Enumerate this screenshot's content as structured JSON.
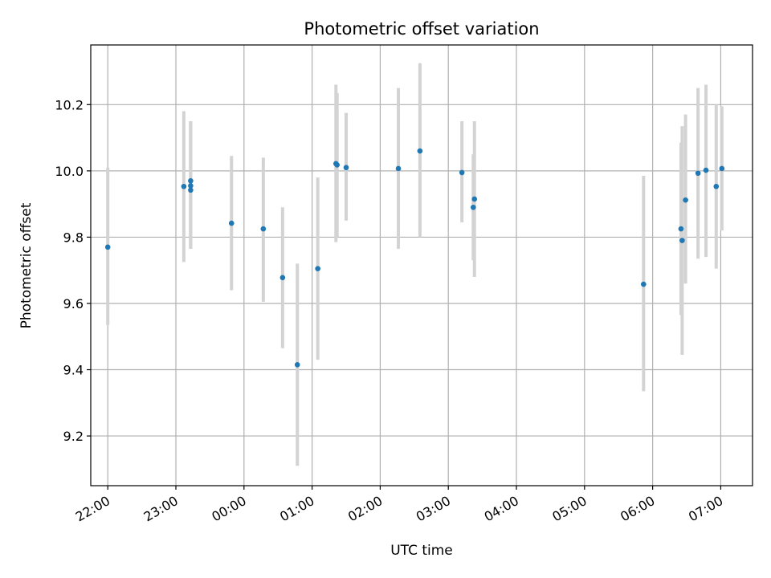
{
  "chart_data": {
    "type": "scatter",
    "title": "Photometric offset variation",
    "xlabel": "UTC time",
    "ylabel": "Photometric offset",
    "x_format": "HH:MM",
    "x_start_date": "",
    "xlim": [
      "21:45",
      "07:28"
    ],
    "ylim": [
      9.05,
      10.38
    ],
    "x_ticks": [
      "22:00",
      "23:00",
      "00:00",
      "01:00",
      "02:00",
      "03:00",
      "04:00",
      "05:00",
      "06:00",
      "07:00"
    ],
    "y_ticks": [
      9.2,
      9.4,
      9.6,
      9.8,
      10.0,
      10.2
    ],
    "grid": true,
    "colors": {
      "points": "#1f77b4",
      "error_bars": "#d3d3d3",
      "grid": "#b0b0b0",
      "axes": "#000000"
    },
    "series": [
      {
        "points": [
          {
            "x": "22:00",
            "y": 9.77,
            "lo": 9.535,
            "hi": 10.01
          },
          {
            "x": "23:07",
            "y": 9.953,
            "lo": 9.725,
            "hi": 10.18
          },
          {
            "x": "23:13",
            "y": 9.97,
            "lo": 9.765,
            "hi": 10.15
          },
          {
            "x": "23:13",
            "y": 9.955,
            "lo": 9.765,
            "hi": 10.15
          },
          {
            "x": "23:13",
            "y": 9.942,
            "lo": 9.765,
            "hi": 10.15
          },
          {
            "x": "23:49",
            "y": 9.842,
            "lo": 9.64,
            "hi": 10.045
          },
          {
            "x": "00:17",
            "y": 9.825,
            "lo": 9.605,
            "hi": 10.04
          },
          {
            "x": "00:34",
            "y": 9.678,
            "lo": 9.465,
            "hi": 9.89
          },
          {
            "x": "00:47",
            "y": 9.415,
            "lo": 9.11,
            "hi": 9.72
          },
          {
            "x": "01:05",
            "y": 9.705,
            "lo": 9.43,
            "hi": 9.98
          },
          {
            "x": "01:21",
            "y": 10.022,
            "lo": 9.785,
            "hi": 10.26
          },
          {
            "x": "01:22",
            "y": 10.018,
            "lo": 9.8,
            "hi": 10.235
          },
          {
            "x": "01:30",
            "y": 10.01,
            "lo": 9.85,
            "hi": 10.175
          },
          {
            "x": "02:16",
            "y": 10.007,
            "lo": 9.765,
            "hi": 10.25
          },
          {
            "x": "02:35",
            "y": 10.06,
            "lo": 9.8,
            "hi": 10.325
          },
          {
            "x": "03:12",
            "y": 9.995,
            "lo": 9.845,
            "hi": 10.15
          },
          {
            "x": "03:22",
            "y": 9.89,
            "lo": 9.73,
            "hi": 10.05
          },
          {
            "x": "03:23",
            "y": 9.915,
            "lo": 9.68,
            "hi": 10.15
          },
          {
            "x": "05:52",
            "y": 9.658,
            "lo": 9.335,
            "hi": 9.985
          },
          {
            "x": "06:25",
            "y": 9.825,
            "lo": 9.565,
            "hi": 10.085
          },
          {
            "x": "06:26",
            "y": 9.79,
            "lo": 9.445,
            "hi": 10.135
          },
          {
            "x": "06:29",
            "y": 9.912,
            "lo": 9.66,
            "hi": 10.17
          },
          {
            "x": "06:40",
            "y": 9.993,
            "lo": 9.735,
            "hi": 10.25
          },
          {
            "x": "06:47",
            "y": 10.002,
            "lo": 9.74,
            "hi": 10.26
          },
          {
            "x": "06:56",
            "y": 9.953,
            "lo": 9.705,
            "hi": 10.2
          },
          {
            "x": "07:01",
            "y": 10.007,
            "lo": 9.82,
            "hi": 10.195
          }
        ]
      }
    ]
  }
}
